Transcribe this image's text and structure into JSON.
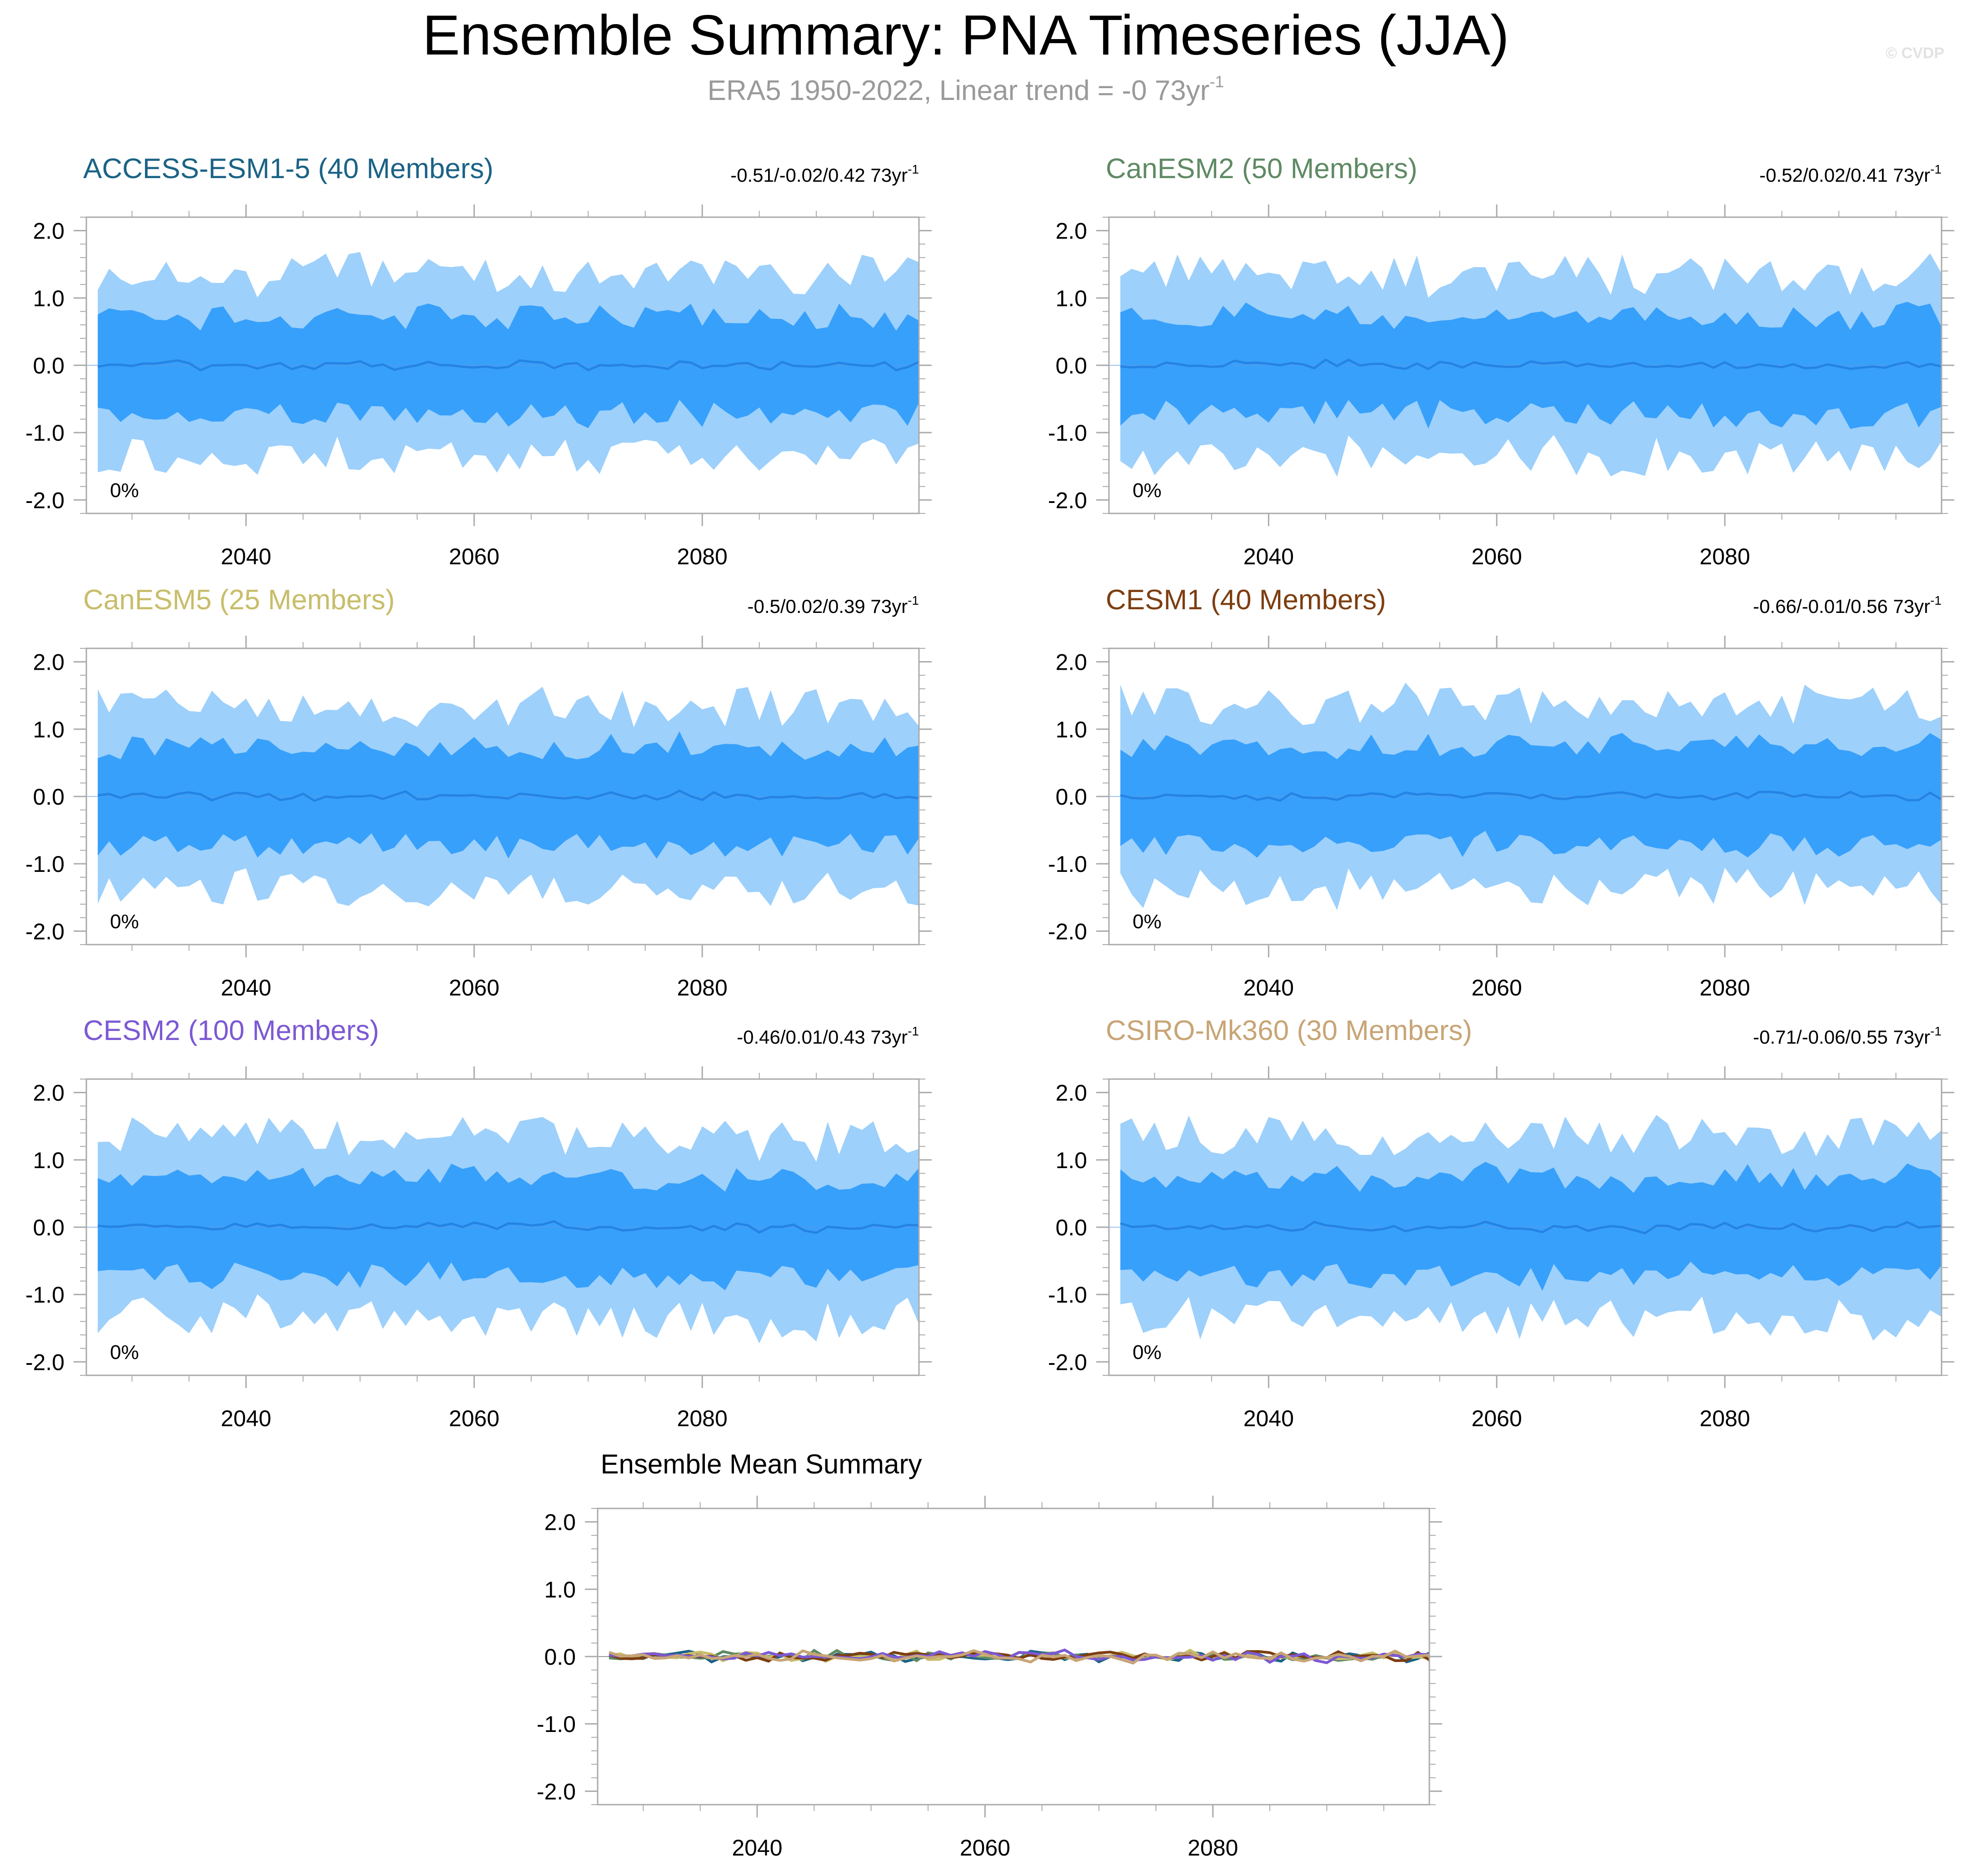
{
  "title": "Ensemble Summary: PNA Timeseries (JJA)",
  "subtitle": {
    "text": "ERA5 1950-2022, Linear trend = -0 73yr",
    "superscript": "-1"
  },
  "copyright": "© CVDP",
  "colors": {
    "outer_band": "#9dd0fb",
    "inner_band": "#37a0fb",
    "mean_line": "#2583e3",
    "axis": "#aaaaaa"
  },
  "chart_data": [
    {
      "type": "area",
      "title": "ACCESS-ESM1-5 (40 Members)",
      "title_color": "#1b6386",
      "trend": "-0.51/-0.02/0.42 73yr",
      "trend_sup": "-1",
      "percent_label": "0%",
      "xlim": [
        2026,
        2099
      ],
      "ylim": [
        -2.2,
        2.2
      ],
      "xticks": [
        "2040",
        "2060",
        "2080"
      ],
      "yticks": [
        "2.0",
        "1.0",
        "0.0",
        "-1.0",
        "-2.0"
      ],
      "seed": 11
    },
    {
      "type": "area",
      "title": "CanESM2 (50 Members)",
      "title_color": "#5f8a64",
      "trend": "-0.52/0.02/0.41 73yr",
      "trend_sup": "-1",
      "percent_label": "0%",
      "xlim": [
        2026,
        2099
      ],
      "ylim": [
        -2.2,
        2.2
      ],
      "xticks": [
        "2040",
        "2060",
        "2080"
      ],
      "yticks": [
        "2.0",
        "1.0",
        "0.0",
        "-1.0",
        "-2.0"
      ],
      "seed": 23
    },
    {
      "type": "area",
      "title": "CanESM5 (25 Members)",
      "title_color": "#c8bd6a",
      "trend": "-0.5/0.02/0.39 73yr",
      "trend_sup": "-1",
      "percent_label": "0%",
      "xlim": [
        2026,
        2099
      ],
      "ylim": [
        -2.2,
        2.2
      ],
      "xticks": [
        "2040",
        "2060",
        "2080"
      ],
      "yticks": [
        "2.0",
        "1.0",
        "0.0",
        "-1.0",
        "-2.0"
      ],
      "seed": 37
    },
    {
      "type": "area",
      "title": "CESM1 (40 Members)",
      "title_color": "#7d3e10",
      "trend": "-0.66/-0.01/0.56 73yr",
      "trend_sup": "-1",
      "percent_label": "0%",
      "xlim": [
        2026,
        2099
      ],
      "ylim": [
        -2.2,
        2.2
      ],
      "xticks": [
        "2040",
        "2060",
        "2080"
      ],
      "yticks": [
        "2.0",
        "1.0",
        "0.0",
        "-1.0",
        "-2.0"
      ],
      "seed": 41
    },
    {
      "type": "area",
      "title": "CESM2 (100 Members)",
      "title_color": "#7c59d3",
      "trend": "-0.46/0.01/0.43 73yr",
      "trend_sup": "-1",
      "percent_label": "0%",
      "xlim": [
        2026,
        2099
      ],
      "ylim": [
        -2.2,
        2.2
      ],
      "xticks": [
        "2040",
        "2060",
        "2080"
      ],
      "yticks": [
        "2.0",
        "1.0",
        "0.0",
        "-1.0",
        "-2.0"
      ],
      "seed": 53
    },
    {
      "type": "area",
      "title": "CSIRO-Mk360 (30 Members)",
      "title_color": "#c8a576",
      "trend": "-0.71/-0.06/0.55 73yr",
      "trend_sup": "-1",
      "percent_label": "0%",
      "xlim": [
        2026,
        2099
      ],
      "ylim": [
        -2.2,
        2.2
      ],
      "xticks": [
        "2040",
        "2060",
        "2080"
      ],
      "yticks": [
        "2.0",
        "1.0",
        "0.0",
        "-1.0",
        "-2.0"
      ],
      "seed": 67
    },
    {
      "type": "line",
      "title": "Ensemble Mean Summary",
      "xlim": [
        2026,
        2099
      ],
      "ylim": [
        -2.2,
        2.2
      ],
      "xticks": [
        "2040",
        "2060",
        "2080"
      ],
      "yticks": [
        "2.0",
        "1.0",
        "0.0",
        "-1.0",
        "-2.0"
      ],
      "series": [
        {
          "name": "ACCESS-ESM1-5",
          "color": "#1b6386",
          "seed": 11
        },
        {
          "name": "CanESM2",
          "color": "#5f8a64",
          "seed": 23
        },
        {
          "name": "CanESM5",
          "color": "#c8bd6a",
          "seed": 37
        },
        {
          "name": "CESM1",
          "color": "#7d3e10",
          "seed": 41
        },
        {
          "name": "CESM2",
          "color": "#7c59d3",
          "seed": 53
        },
        {
          "name": "CSIRO-Mk360",
          "color": "#c8a576",
          "seed": 67
        }
      ]
    }
  ]
}
